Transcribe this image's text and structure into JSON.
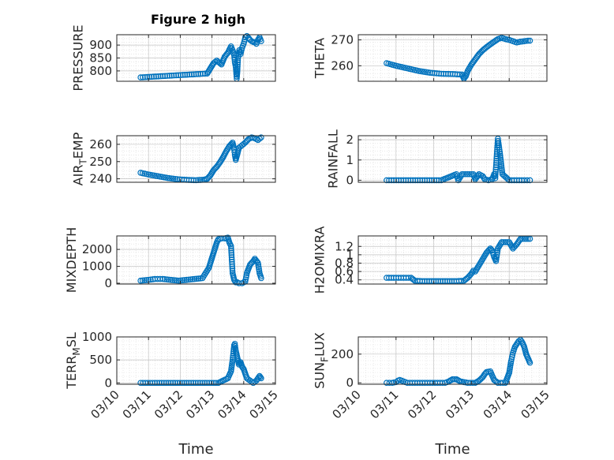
{
  "figure": {
    "title": "Figure 2 high",
    "background": "#ffffff",
    "marker_color": "#0072BD"
  },
  "chart_data": [
    {
      "type": "scatter",
      "ylabel": "PRESSURE",
      "ylabel_main": "PRESSURE",
      "xlim": [
        0,
        5
      ],
      "ylim": [
        760,
        940
      ],
      "yticks": [
        800,
        850,
        900
      ],
      "ytick_labels": [
        "800",
        "850",
        "900"
      ],
      "xticks": [
        0,
        1,
        2,
        3,
        4,
        5
      ],
      "xtick_labels": [],
      "grid": true,
      "minor_grid": true,
      "title": "Figure 2 high",
      "series": [
        {
          "x": [
            0.75,
            2.85,
            2.95,
            3.05,
            3.15,
            3.3,
            3.4,
            3.5,
            3.6,
            3.65,
            3.7,
            3.72,
            3.75,
            3.78,
            3.8,
            3.82,
            3.86,
            3.9,
            3.95,
            4.0,
            4.05,
            4.1,
            4.15,
            4.2,
            4.25,
            4.3,
            4.35,
            4.4,
            4.45,
            4.5,
            4.55
          ],
          "y": [
            775,
            790,
            810,
            830,
            840,
            825,
            855,
            870,
            895,
            880,
            860,
            835,
            815,
            770,
            800,
            850,
            880,
            865,
            890,
            905,
            930,
            935,
            928,
            920,
            915,
            912,
            910,
            905,
            920,
            930,
            915
          ]
        }
      ]
    },
    {
      "type": "scatter",
      "ylabel": "THETA",
      "ylabel_main": "THETA",
      "xlim": [
        0,
        5
      ],
      "ylim": [
        254,
        272
      ],
      "yticks": [
        260,
        270
      ],
      "ytick_labels": [
        "260",
        "270"
      ],
      "xticks": [
        0,
        1,
        2,
        3,
        4,
        5
      ],
      "xtick_labels": [],
      "grid": true,
      "minor_grid": true,
      "series": [
        {
          "x": [
            0.75,
            1.0,
            1.3,
            1.6,
            1.9,
            2.2,
            2.5,
            2.75,
            2.8,
            2.85,
            2.9,
            3.0,
            3.1,
            3.2,
            3.3,
            3.4,
            3.5,
            3.6,
            3.7,
            3.8,
            3.9,
            4.0,
            4.1,
            4.2,
            4.3,
            4.4,
            4.5,
            4.55
          ],
          "y": [
            261,
            260,
            259,
            258,
            257.3,
            256.9,
            256.8,
            256.6,
            255,
            256,
            258,
            260.5,
            262.5,
            264.5,
            266,
            267.2,
            268.3,
            269.3,
            270.3,
            270.8,
            270.3,
            270,
            269.5,
            269,
            269.3,
            269.5,
            269.7,
            269.7
          ]
        }
      ]
    },
    {
      "type": "scatter",
      "ylabel": "AIR_TEMP",
      "ylabel_main": "AIR",
      "ylabel_sub": "T",
      "ylabel_rest": "EMP",
      "xlim": [
        0,
        5
      ],
      "ylim": [
        238,
        265
      ],
      "yticks": [
        240,
        250,
        260
      ],
      "ytick_labels": [
        "240",
        "250",
        "260"
      ],
      "xticks": [
        0,
        1,
        2,
        3,
        4,
        5
      ],
      "xtick_labels": [],
      "grid": true,
      "minor_grid": true,
      "series": [
        {
          "x": [
            0.75,
            1.0,
            1.3,
            1.6,
            1.9,
            2.2,
            2.5,
            2.75,
            2.85,
            2.95,
            3.05,
            3.15,
            3.25,
            3.35,
            3.45,
            3.55,
            3.65,
            3.7,
            3.72,
            3.75,
            3.78,
            3.85,
            3.95,
            4.05,
            4.15,
            4.25,
            4.35,
            4.45,
            4.55
          ],
          "y": [
            243.5,
            242.5,
            241.5,
            240.5,
            239.8,
            239.4,
            239.2,
            239.5,
            240,
            242,
            245,
            247,
            249.5,
            252.5,
            256,
            259,
            261,
            257,
            254,
            251,
            253,
            258,
            259.5,
            261,
            263,
            264,
            263.5,
            262.5,
            264
          ]
        }
      ]
    },
    {
      "type": "scatter",
      "ylabel": "RAINFALL",
      "ylabel_main": "RAINFALL",
      "xlim": [
        0,
        5
      ],
      "ylim": [
        -0.1,
        2.2
      ],
      "yticks": [
        0,
        1,
        2
      ],
      "ytick_labels": [
        "0",
        "1",
        "2"
      ],
      "xticks": [
        0,
        1,
        2,
        3,
        4,
        5
      ],
      "xtick_labels": [],
      "grid": true,
      "minor_grid": true,
      "series": [
        {
          "x": [
            0.75,
            1.2,
            1.7,
            2.2,
            2.6,
            2.65,
            2.75,
            2.85,
            2.95,
            3.05,
            3.1,
            3.2,
            3.3,
            3.35,
            3.45,
            3.55,
            3.6,
            3.63,
            3.7,
            3.75,
            3.82,
            4.0,
            4.2,
            4.4,
            4.55
          ],
          "y": [
            0,
            0,
            0,
            0,
            0.3,
            0,
            0.3,
            0.3,
            0.3,
            0.3,
            0.05,
            0.3,
            0.2,
            0.05,
            0,
            0.05,
            0.3,
            0.1,
            2.05,
            1.4,
            0.3,
            0,
            0,
            0,
            0
          ]
        }
      ]
    },
    {
      "type": "scatter",
      "ylabel": "MIXDEPTH",
      "ylabel_main": "MIXDEPTH",
      "xlim": [
        0,
        5
      ],
      "ylim": [
        -50,
        2800
      ],
      "yticks": [
        0,
        1000,
        2000
      ],
      "ytick_labels": [
        "0",
        "1000",
        "2000"
      ],
      "xticks": [
        0,
        1,
        2,
        3,
        4,
        5
      ],
      "xtick_labels": [],
      "grid": true,
      "minor_grid": true,
      "series": [
        {
          "x": [
            0.75,
            1.0,
            1.2,
            1.45,
            1.7,
            1.95,
            2.2,
            2.45,
            2.7,
            2.8,
            2.9,
            2.95,
            3.0,
            3.05,
            3.1,
            3.15,
            3.2,
            3.3,
            3.4,
            3.5,
            3.55,
            3.6,
            3.65,
            3.7,
            3.75,
            3.8,
            3.85,
            3.95,
            4.05,
            4.1,
            4.2,
            4.3,
            4.35,
            4.45,
            4.5,
            4.55
          ],
          "y": [
            150,
            200,
            250,
            250,
            200,
            150,
            200,
            250,
            300,
            600,
            900,
            1200,
            1500,
            1800,
            2100,
            2400,
            2600,
            2650,
            2650,
            2700,
            2400,
            2200,
            600,
            200,
            50,
            50,
            0,
            0,
            100,
            600,
            1100,
            1300,
            1450,
            1200,
            600,
            300
          ]
        }
      ]
    },
    {
      "type": "scatter",
      "ylabel": "H2OMIXRA",
      "ylabel_main": "H2OMIXRA",
      "xlim": [
        0,
        5
      ],
      "ylim": [
        0.3,
        1.45
      ],
      "yticks": [
        0.4,
        0.6,
        0.8,
        1.0,
        1.2
      ],
      "ytick_labels": [
        "0.4",
        "0.6",
        "0.8",
        "1",
        "1.2"
      ],
      "xticks": [
        0,
        1,
        2,
        3,
        4,
        5
      ],
      "xtick_labels": [],
      "grid": true,
      "minor_grid": true,
      "series": [
        {
          "x": [
            0.75,
            1.0,
            1.2,
            1.4,
            1.5,
            1.7,
            2.0,
            2.3,
            2.6,
            2.8,
            2.9,
            3.0,
            3.05,
            3.1,
            3.2,
            3.3,
            3.4,
            3.5,
            3.55,
            3.6,
            3.65,
            3.7,
            3.8,
            3.9,
            4.0,
            4.1,
            4.2,
            4.3,
            4.4,
            4.5,
            4.55
          ],
          "y": [
            0.45,
            0.45,
            0.45,
            0.45,
            0.38,
            0.37,
            0.37,
            0.37,
            0.37,
            0.38,
            0.45,
            0.55,
            0.62,
            0.6,
            0.75,
            0.9,
            1.05,
            1.15,
            1.1,
            0.95,
            0.85,
            1.15,
            1.3,
            1.3,
            1.3,
            1.15,
            1.25,
            1.38,
            1.38,
            1.38,
            1.38
          ]
        }
      ]
    },
    {
      "type": "scatter",
      "ylabel": "TERR_MSL",
      "ylabel_main": "TERR",
      "ylabel_sub": "M",
      "ylabel_rest": "SL",
      "xlim": [
        0,
        5
      ],
      "ylim": [
        -30,
        1000
      ],
      "yticks": [
        0,
        500,
        1000
      ],
      "ytick_labels": [
        "0",
        "500",
        "1000"
      ],
      "xticks": [
        0,
        1,
        2,
        3,
        4,
        5
      ],
      "xtick_labels": [
        "03/10",
        "03/11",
        "03/12",
        "03/13",
        "03/14",
        "03/15"
      ],
      "xlabel": "Time",
      "grid": true,
      "minor_grid": true,
      "series": [
        {
          "x": [
            0.75,
            1.2,
            1.7,
            2.2,
            2.7,
            3.2,
            3.5,
            3.6,
            3.65,
            3.7,
            3.72,
            3.75,
            3.8,
            3.85,
            3.9,
            3.95,
            4.0,
            4.05,
            4.1,
            4.2,
            4.3,
            4.4,
            4.5,
            4.55
          ],
          "y": [
            0,
            0,
            0,
            0,
            0,
            0,
            100,
            250,
            500,
            820,
            850,
            700,
            550,
            400,
            450,
            350,
            300,
            200,
            100,
            50,
            0,
            50,
            150,
            100
          ]
        }
      ]
    },
    {
      "type": "scatter",
      "ylabel": "SUN_FLUX",
      "ylabel_main": "SUN",
      "ylabel_sub": "F",
      "ylabel_rest": "LUX",
      "xlim": [
        0,
        5
      ],
      "ylim": [
        -10,
        320
      ],
      "yticks": [
        0,
        200
      ],
      "ytick_labels": [
        "0",
        "200"
      ],
      "xticks": [
        0,
        1,
        2,
        3,
        4,
        5
      ],
      "xtick_labels": [
        "03/10",
        "03/11",
        "03/12",
        "03/13",
        "03/14",
        "03/15"
      ],
      "xlabel": "Time",
      "grid": true,
      "minor_grid": true,
      "series": [
        {
          "x": [
            0.75,
            0.9,
            1.0,
            1.05,
            1.1,
            1.2,
            1.3,
            1.5,
            1.7,
            1.9,
            2.1,
            2.3,
            2.4,
            2.5,
            2.6,
            2.7,
            2.9,
            3.1,
            3.2,
            3.3,
            3.35,
            3.4,
            3.5,
            3.6,
            3.7,
            3.9,
            4.0,
            4.05,
            4.1,
            4.15,
            4.2,
            4.25,
            4.3,
            4.35,
            4.4,
            4.45,
            4.5,
            4.55
          ],
          "y": [
            0,
            0,
            5,
            15,
            20,
            10,
            0,
            0,
            0,
            0,
            0,
            0,
            10,
            25,
            25,
            10,
            0,
            0,
            15,
            40,
            60,
            75,
            80,
            20,
            0,
            0,
            70,
            150,
            210,
            250,
            270,
            290,
            300,
            280,
            250,
            200,
            170,
            140
          ]
        }
      ]
    }
  ]
}
